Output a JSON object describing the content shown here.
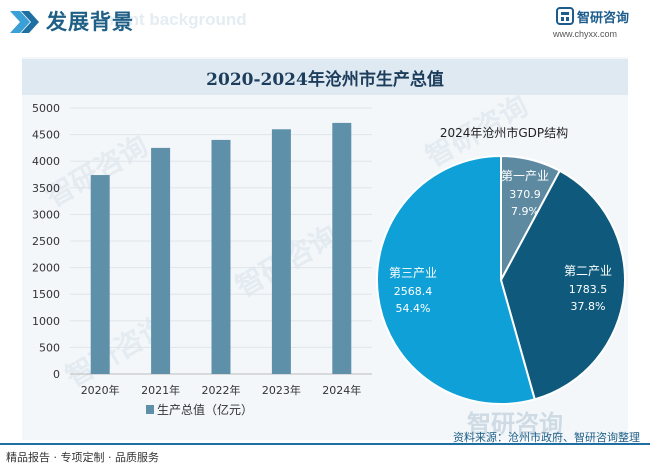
{
  "header": {
    "title": "发展背景",
    "ghost_text": "ment background",
    "logo_text": "智研咨询",
    "site_url": "www.chyxx.com"
  },
  "chart_title": "2020-2024年沧州市生产总值",
  "footer": {
    "left": "精品报告 · 专项定制 · 品质服务",
    "source": "资料来源：沧州市政府、智研咨询整理"
  },
  "watermark": "智研咨询",
  "colors": {
    "bar": "#5f90a9",
    "primary": "#5d8aa1",
    "secondary": "#0f5a7c",
    "tertiary": "#0fa0d8",
    "title_blue": "#1f5f86"
  },
  "chart_data": [
    {
      "type": "bar",
      "categories": [
        "2020年",
        "2021年",
        "2022年",
        "2023年",
        "2024年"
      ],
      "series": [
        {
          "name": "生产总值（亿元）",
          "values": [
            3740,
            4250,
            4400,
            4600,
            4720
          ]
        }
      ],
      "ylim": [
        0,
        5000
      ],
      "yticks": [
        0,
        500,
        1000,
        1500,
        2000,
        2500,
        3000,
        3500,
        4000,
        4500,
        5000
      ],
      "legend": "bottom"
    },
    {
      "type": "pie",
      "title": "2024年沧州市GDP结构",
      "slices": [
        {
          "label": "第一产业",
          "value": 370.9,
          "percent": "7.9%",
          "value_text": "370.9"
        },
        {
          "label": "第二产业",
          "value": 1783.5,
          "percent": "37.8%",
          "value_text": "1783.5"
        },
        {
          "label": "第三产业",
          "value": 2568.4,
          "percent": "54.4%",
          "value_text": "2568.4"
        }
      ]
    }
  ]
}
